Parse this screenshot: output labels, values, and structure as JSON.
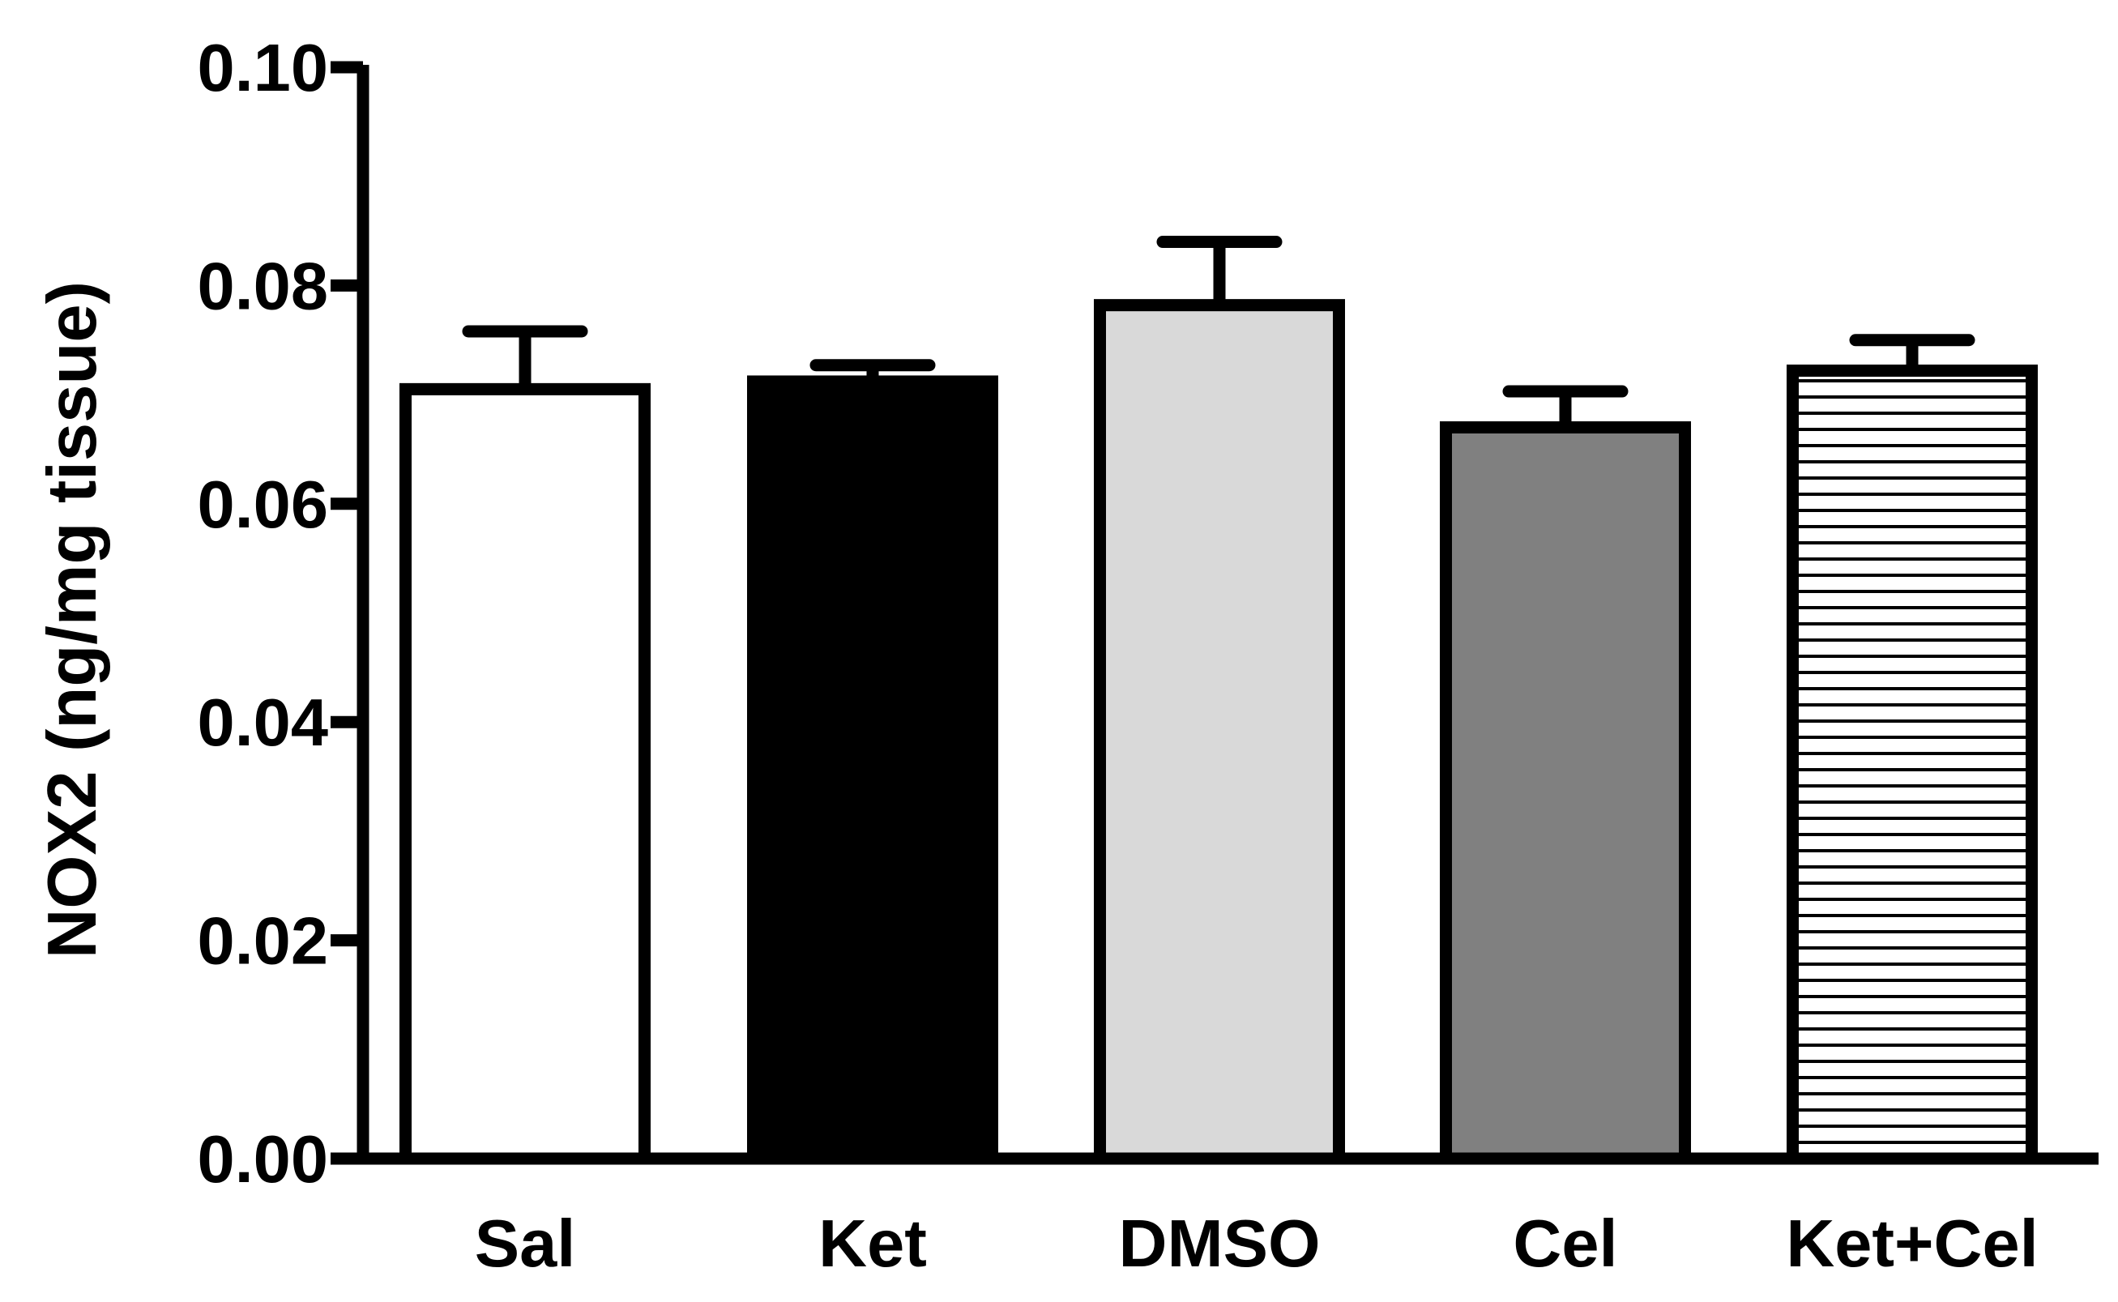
{
  "chart_data": {
    "type": "bar",
    "title": "",
    "xlabel": "",
    "ylabel": "NOX2 (ng/mg tissue)",
    "ylim": [
      0,
      0.1
    ],
    "yticks": [
      "0.00",
      "0.02",
      "0.04",
      "0.06",
      "0.08",
      "0.10"
    ],
    "grid": false,
    "legend": "none",
    "categories": [
      "Sal",
      "Ket",
      "DMSO",
      "Cel",
      "Ket+Cel"
    ],
    "values": [
      0.0705,
      0.0712,
      0.0782,
      0.067,
      0.0722
    ],
    "errors": [
      0.0053,
      0.0015,
      0.0058,
      0.0033,
      0.0028
    ],
    "fills": [
      "#ffffff",
      "#000000",
      "#d9d9d9",
      "#808080",
      "striped"
    ],
    "colors": {
      "outline": "#000000",
      "stripe": "#000000",
      "background": "#ffffff"
    }
  }
}
